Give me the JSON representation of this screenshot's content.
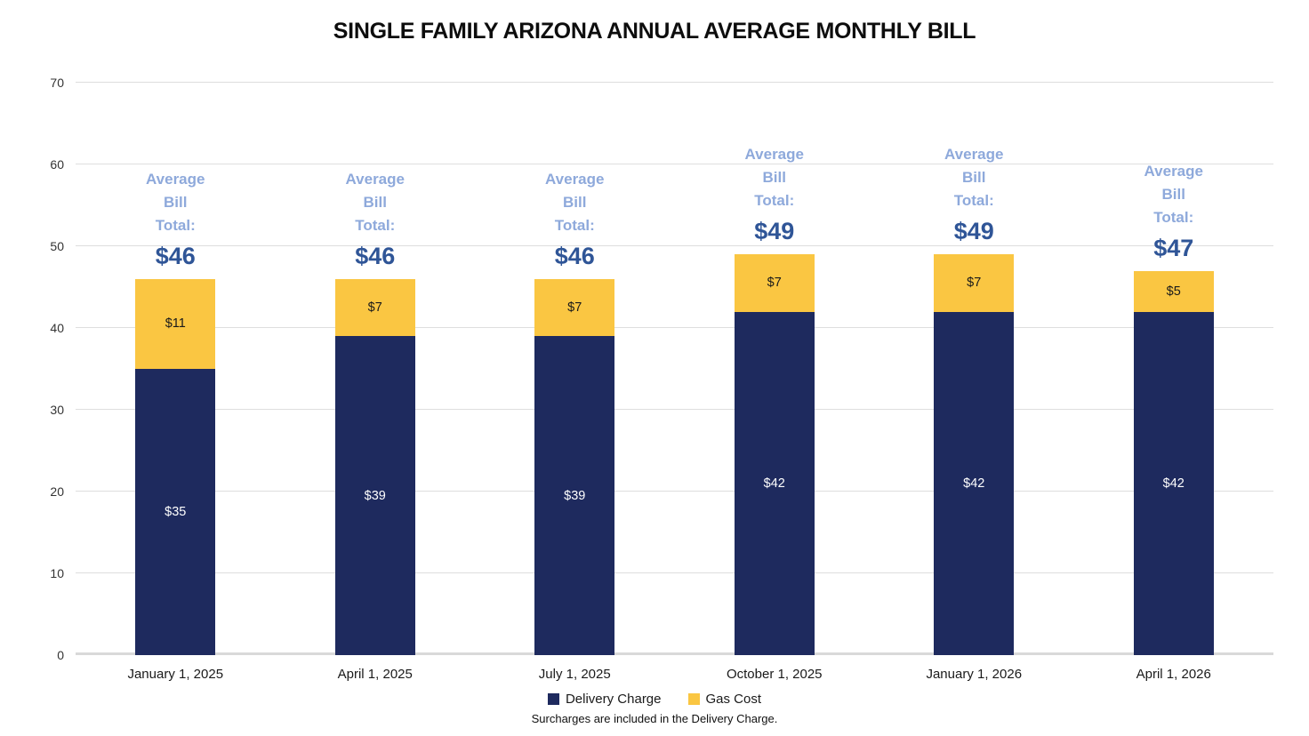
{
  "title": "SINGLE FAMILY ARIZONA ANNUAL AVERAGE MONTHLY BILL",
  "footnote": "Surcharges are included in the Delivery Charge.",
  "chart_data": {
    "type": "bar",
    "stacked": true,
    "title": "SINGLE FAMILY ARIZONA ANNUAL AVERAGE MONTHLY BILL",
    "categories": [
      "January 1, 2025",
      "April 1, 2025",
      "July 1, 2025",
      "October 1, 2025",
      "January 1, 2026",
      "April 1, 2026"
    ],
    "series": [
      {
        "name": "Delivery Charge",
        "color": "#1E2A5E",
        "label_color": "#FFFFFF",
        "values": [
          35,
          39,
          39,
          42,
          42,
          42
        ],
        "labels": [
          "$35",
          "$39",
          "$39",
          "$42",
          "$42",
          "$42"
        ]
      },
      {
        "name": "Gas Cost",
        "color": "#FAC642",
        "label_color": "#1A1A1A",
        "values": [
          11,
          7,
          7,
          7,
          7,
          5
        ],
        "labels": [
          "$11",
          "$7",
          "$7",
          "$7",
          "$7",
          "$5"
        ]
      }
    ],
    "totals": [
      46,
      46,
      46,
      49,
      49,
      47
    ],
    "total_labels": [
      "$46",
      "$46",
      "$46",
      "$49",
      "$49",
      "$47"
    ],
    "total_header_lines": [
      "Average",
      "Bill",
      "Total:"
    ],
    "ylim": [
      0,
      70
    ],
    "yticks": [
      0,
      10,
      20,
      30,
      40,
      50,
      60,
      70
    ],
    "grid": true,
    "legend_position": "bottom",
    "annotation_colors": {
      "total_header": "#8EA9DB",
      "total_value": "#2F5597"
    }
  }
}
